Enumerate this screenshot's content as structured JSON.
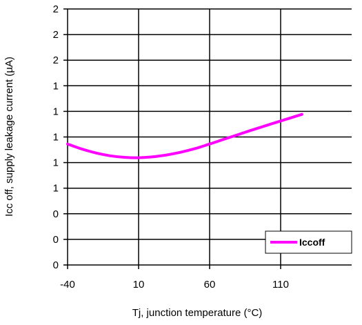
{
  "chart_data": {
    "type": "line",
    "title": "",
    "xlabel": "Tj, junction temperature (°C)",
    "ylabel": "Icc off, supply leakage current (µA)",
    "xlim": [
      -40,
      160
    ],
    "ylim": [
      0,
      2
    ],
    "x_ticks": [
      -40,
      10,
      60,
      110
    ],
    "x_tick_labels": [
      "-40",
      "10",
      "60",
      "110"
    ],
    "y_ticks": [
      0,
      0.2,
      0.4,
      0.6,
      0.8,
      1.0,
      1.2,
      1.4,
      1.6,
      1.8,
      2.0
    ],
    "y_tick_labels": [
      "0",
      "0",
      "0",
      "1",
      "1",
      "1",
      "1",
      "1",
      "2",
      "2",
      "2"
    ],
    "grid": true,
    "legend_position": "bottom-right",
    "series": [
      {
        "name": "Iccoff",
        "color": "#ff00ff",
        "x": [
          -40,
          -30,
          -20,
          -10,
          0,
          10,
          20,
          30,
          40,
          50,
          60,
          70,
          80,
          90,
          100,
          110,
          125
        ],
        "y": [
          0.945,
          0.906,
          0.875,
          0.853,
          0.841,
          0.838,
          0.845,
          0.86,
          0.882,
          0.91,
          0.945,
          0.982,
          1.018,
          1.055,
          1.09,
          1.125,
          1.177
        ]
      }
    ]
  }
}
